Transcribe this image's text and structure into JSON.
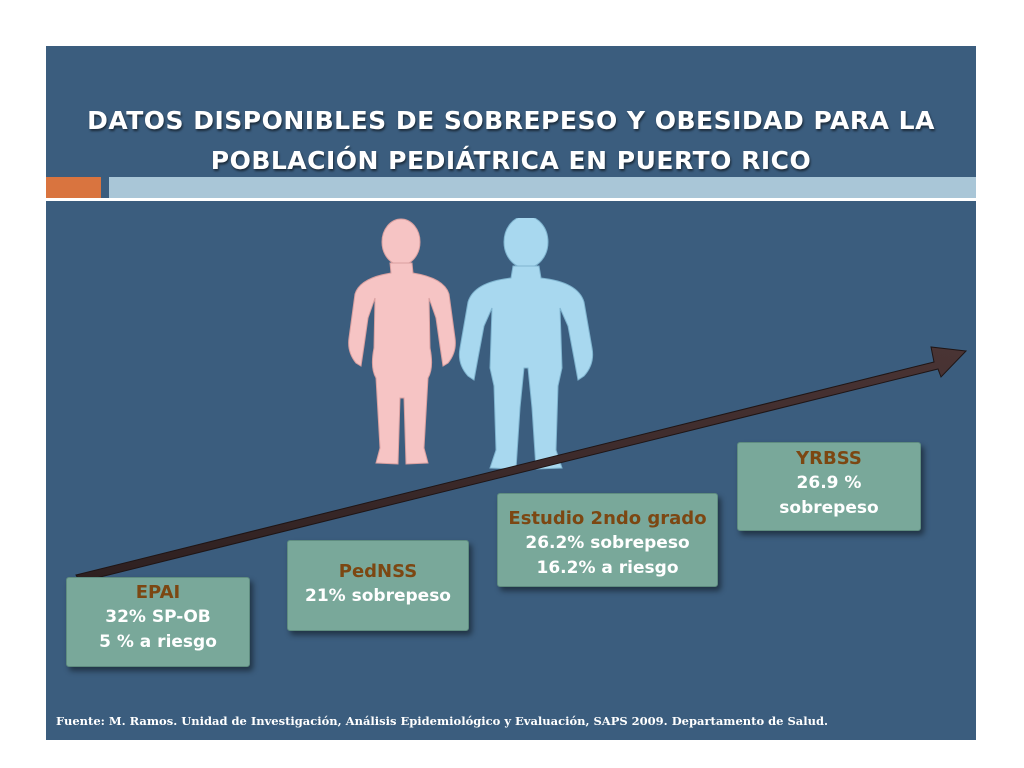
{
  "slide": {
    "title_line_1": "DATOS DISPONIBLES DE SOBREPESO Y OBESIDAD PARA LA",
    "title_line_2": "POBLACIÓN PEDIÁTRICA EN PUERTO RICO",
    "colors": {
      "background": "#3b5d7e",
      "accent_orange": "#d9743f",
      "accent_blue": "#a9c6d7",
      "box_fill": "#79a89a",
      "box_heading": "#7c4712",
      "female_figure": "#f6c4c4",
      "male_figure": "#a8d8ef",
      "arrow": "#3d2b2b"
    }
  },
  "boxes": [
    {
      "heading": "EPAI",
      "line1": "32% SP-OB",
      "line2": "5 % a riesgo"
    },
    {
      "heading": "PedNSS",
      "line1": "21% sobrepeso",
      "line2": ""
    },
    {
      "heading": "Estudio 2ndo grado",
      "line1": "26.2%  sobrepeso",
      "line2": "16.2% a riesgo"
    },
    {
      "heading": "YRBSS",
      "line1": "26.9 %",
      "line2": "sobrepeso"
    }
  ],
  "footer": {
    "source": "Fuente:  M. Ramos.  Unidad de Investigación, Análisis Epidemiológico y Evaluación, SAPS 2009. Departamento de Salud."
  }
}
